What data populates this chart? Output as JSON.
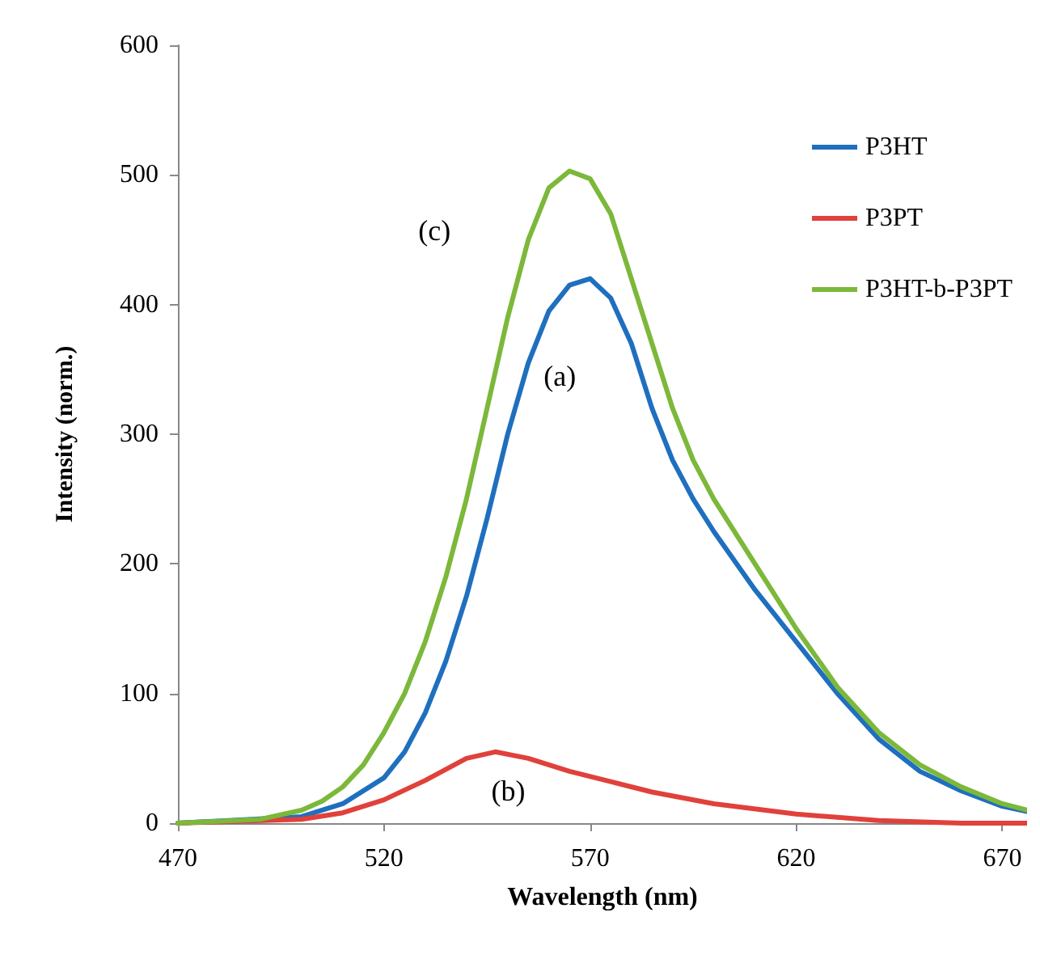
{
  "chart_data": {
    "type": "line",
    "xlabel": "Wavelength (nm)",
    "ylabel": "Intensity (norm.)",
    "xlim": [
      470,
      676
    ],
    "xticks": [
      470,
      520,
      570,
      620,
      670
    ],
    "ylim": [
      0,
      600
    ],
    "yticks": [
      0,
      100,
      200,
      300,
      400,
      500,
      600
    ],
    "grid": false,
    "legend": "top right",
    "marker": "none",
    "line_style": "solid",
    "annotations": [
      {
        "text": "(c)",
        "x": 555,
        "y": 450
      },
      {
        "text": "(a)",
        "x": 565,
        "y": 415
      },
      {
        "text": "(b)",
        "x": 547,
        "y": 55
      }
    ],
    "series": [
      {
        "name": "P3HT",
        "color": "#1f6fbf",
        "x": [
          470,
          500,
          510,
          520,
          525,
          530,
          535,
          540,
          545,
          550,
          555,
          560,
          565,
          570,
          575,
          580,
          585,
          590,
          595,
          600,
          610,
          620,
          630,
          640,
          650,
          660,
          670,
          676
        ],
        "values": [
          0,
          5,
          15,
          35,
          55,
          85,
          125,
          175,
          235,
          300,
          355,
          395,
          415,
          420,
          405,
          370,
          320,
          280,
          250,
          225,
          180,
          140,
          100,
          65,
          40,
          25,
          13,
          9
        ]
      },
      {
        "name": "P3PT",
        "color": "#e0413a",
        "x": [
          470,
          500,
          510,
          520,
          530,
          540,
          547,
          555,
          565,
          575,
          585,
          600,
          620,
          640,
          660,
          676
        ],
        "values": [
          0,
          3,
          8,
          18,
          33,
          50,
          55,
          50,
          40,
          32,
          24,
          15,
          7,
          2,
          0,
          0
        ]
      },
      {
        "name": "P3HT-b-P3PT",
        "color": "#7cb83a",
        "x": [
          470,
          490,
          500,
          505,
          510,
          515,
          520,
          525,
          530,
          535,
          540,
          545,
          550,
          555,
          560,
          565,
          570,
          575,
          580,
          585,
          590,
          595,
          600,
          610,
          620,
          630,
          640,
          650,
          660,
          670,
          676
        ],
        "values": [
          0,
          3,
          10,
          17,
          28,
          45,
          70,
          100,
          140,
          190,
          250,
          320,
          390,
          450,
          490,
          503,
          497,
          470,
          420,
          370,
          320,
          280,
          250,
          200,
          150,
          105,
          70,
          45,
          28,
          15,
          10
        ]
      }
    ]
  }
}
